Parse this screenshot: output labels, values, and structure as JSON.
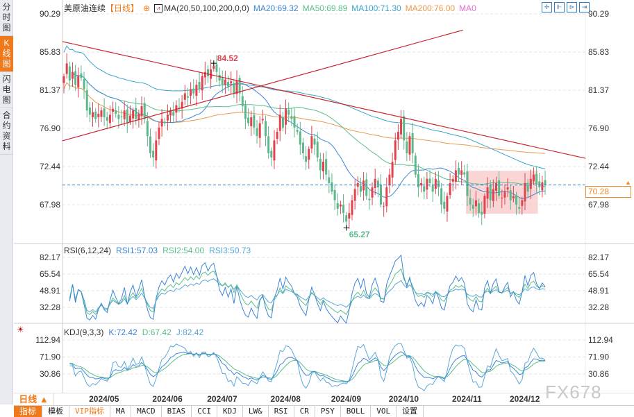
{
  "sidebar": {
    "items": [
      {
        "label": "分时图"
      },
      {
        "label": "K线图",
        "active": true
      },
      {
        "label": "闪电图"
      },
      {
        "label": "合约资料"
      }
    ]
  },
  "legend": {
    "title": "美原油连续",
    "period": "【日线】",
    "ma_label": "MA(20,50,100,200,0,0)",
    "ma20": "MA20:69.32",
    "ma50": "MA50:69.89",
    "ma100": "MA100:71.30",
    "ma200": "MA200:76.00",
    "ma0": "MA0"
  },
  "rsi_legend": {
    "label": "RSI(6,12,24)",
    "rsi1": "RSI1:57.03",
    "rsi2": "RSI2:54.00",
    "rsi3": "RSI3:50.73"
  },
  "kdj_legend": {
    "label": "KDJ(9,3,3)",
    "k": "K:72.42",
    "d": "D:67.42",
    "j": "J:82.42"
  },
  "toolbar": {
    "icons": [
      "crosshair-icon",
      "zoom-in-bars-icon",
      "zoom-out-bars-icon",
      "scroll-end-icon"
    ]
  },
  "current_price": "70.28",
  "annotations": {
    "max_label": "84.52",
    "min_label": "65.27"
  },
  "xaxis": {
    "period_label": "日线 ▲",
    "dates": [
      "2024/05",
      "2024/06",
      "2024/07",
      "2024/08",
      "2024/09",
      "2024/10",
      "2024/11",
      "2024/12"
    ]
  },
  "tabs": [
    "指标",
    "模板",
    "VIP指标",
    "MA",
    "MACD",
    "BIAS",
    "CCI",
    "KDJ",
    "LW&",
    "RSI",
    "CR",
    "PSY",
    "BOLL",
    "VOL",
    "设置"
  ],
  "watermark": "FX678",
  "colors": {
    "up": "#e0434e",
    "down": "#5cb88a",
    "ma20": "#3d86d6",
    "ma50": "#5cbf8a",
    "ma100": "#3aa5c9",
    "ma200": "#e99a4c",
    "trend": "#c8232c",
    "box": "#f8c8c8",
    "accent": "#f07a1a"
  },
  "chart_data": {
    "type": "candlestick",
    "main_ticks": [
      "90.29",
      "85.83",
      "81.37",
      "76.90",
      "72.44",
      "67.98"
    ],
    "main_range": [
      66.2,
      91.1
    ],
    "rsi_ticks": [
      "82.17",
      "65.54",
      "48.91",
      "32.28"
    ],
    "kdj_ticks": [
      "112.94",
      "71.90",
      "30.86"
    ],
    "date_tick_index": [
      14,
      36,
      55,
      77,
      98,
      118,
      140,
      160
    ],
    "close": [
      83.0,
      84.5,
      82.5,
      83.5,
      82.0,
      83.0,
      82.8,
      81.5,
      79.0,
      78.5,
      78.8,
      78.0,
      78.6,
      79.0,
      78.2,
      77.8,
      78.5,
      79.2,
      78.6,
      78.0,
      78.3,
      79.0,
      77.5,
      78.4,
      79.0,
      78.0,
      78.6,
      79.5,
      78.0,
      76.0,
      74.0,
      73.5,
      75.5,
      77.0,
      78.0,
      77.5,
      78.5,
      79.0,
      78.4,
      79.6,
      79.2,
      80.0,
      81.0,
      80.5,
      81.5,
      81.0,
      82.0,
      81.5,
      83.0,
      83.5,
      83.0,
      83.8,
      84.2,
      83.5,
      82.5,
      82.0,
      82.6,
      81.8,
      82.4,
      81.0,
      82.5,
      81.0,
      79.5,
      78.0,
      77.5,
      78.2,
      77.0,
      76.0,
      77.5,
      78.0,
      76.0,
      74.0,
      73.5,
      75.5,
      76.5,
      78.5,
      77.0,
      79.2,
      78.5,
      78.0,
      77.0,
      76.5,
      75.0,
      74.0,
      73.0,
      74.5,
      76.0,
      75.0,
      73.5,
      72.0,
      73.0,
      71.5,
      70.5,
      69.5,
      68.5,
      67.5,
      68.0,
      67.0,
      66.0,
      67.0,
      68.5,
      69.8,
      70.5,
      69.5,
      70.8,
      69.0,
      68.5,
      70.0,
      71.0,
      70.0,
      68.0,
      67.8,
      70.0,
      71.5,
      73.0,
      75.5,
      76.5,
      78.0,
      75.5,
      74.0,
      76.0,
      74.0,
      71.5,
      70.0,
      70.5,
      69.5,
      71.0,
      70.5,
      69.5,
      71.0,
      70.0,
      68.0,
      67.5,
      69.0,
      70.5,
      71.0,
      72.0,
      71.5,
      72.0,
      71.5,
      69.0,
      68.0,
      67.5,
      68.5,
      67.0,
      66.8,
      69.0,
      70.0,
      68.5,
      69.8,
      70.5,
      69.0,
      68.8,
      69.5,
      70.0,
      68.5,
      69.0,
      68.0,
      67.5,
      68.5,
      70.5,
      69.5,
      71.0,
      71.5,
      70.5,
      70.0,
      70.6,
      70.28
    ],
    "max_point": {
      "index": 52,
      "price": 84.52
    },
    "min_point": {
      "index": 98,
      "price": 65.27
    },
    "trendlines": [
      {
        "from": [
          -0.5,
          87.05
        ],
        "to": [
          181,
          73.4
        ]
      },
      {
        "from": [
          -0.5,
          75.45
        ],
        "to": [
          138.5,
          88.4
        ]
      }
    ],
    "box": {
      "from_index": 140,
      "to_index": 164,
      "top": 71.96,
      "bottom": 66.93
    }
  }
}
